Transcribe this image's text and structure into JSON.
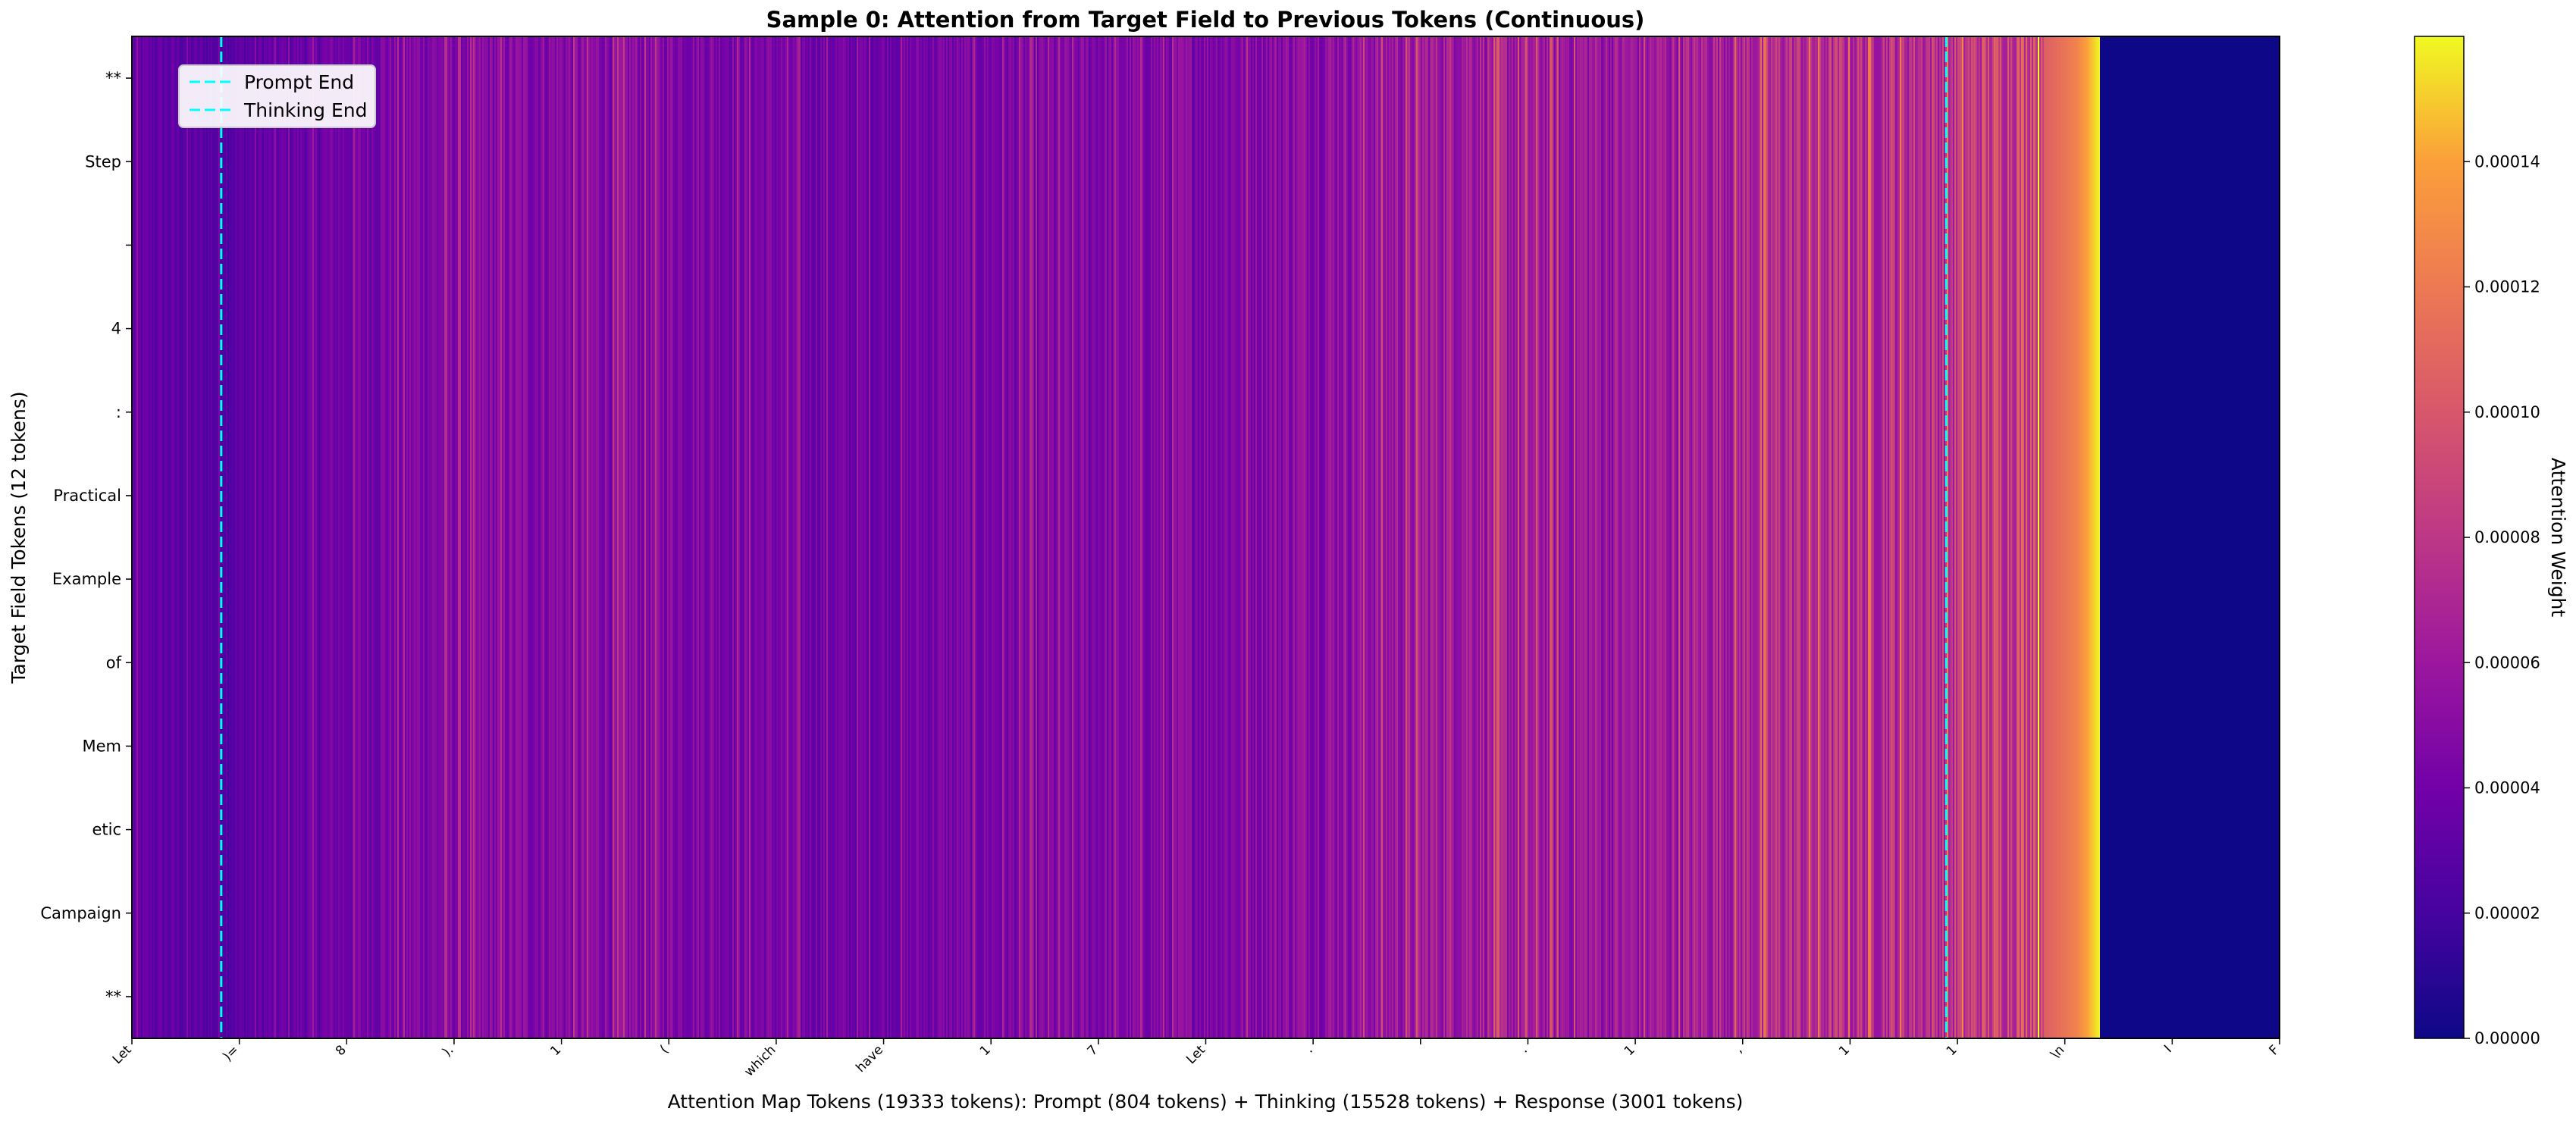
{
  "chart_data": {
    "type": "heatmap",
    "title": "Sample 0: Attention from Target Field to Previous Tokens (Continuous)",
    "xlabel": "Attention Map Tokens (19333 tokens): Prompt (804 tokens) + Thinking (15528 tokens) + Response (3001 tokens)",
    "ylabel": "Target Field Tokens (12 tokens)",
    "total_tokens": 19333,
    "segments": [
      {
        "name": "Prompt",
        "tokens": 804
      },
      {
        "name": "Thinking",
        "tokens": 15528
      },
      {
        "name": "Response",
        "tokens": 3001
      }
    ],
    "y_tokens": [
      "**",
      "Step",
      " ",
      "4",
      ":",
      "Practical",
      "Example",
      "of",
      "Mem",
      "etic",
      "Campaign",
      "**"
    ],
    "x_tick_labels": [
      "Let",
      ")=",
      "8",
      ").",
      "1",
      "(",
      "which",
      "have",
      "1",
      "7",
      "Let",
      ".",
      "",
      ".",
      "1",
      ",",
      "1",
      "1",
      "\\n",
      "I",
      "F"
    ],
    "vlines": [
      {
        "name": "Prompt End",
        "position": 804,
        "color": "#00ffff"
      },
      {
        "name": "Thinking End",
        "position": 16332,
        "color": "#00ffff"
      }
    ],
    "legend_position": "upper-left",
    "colormap": "plasma",
    "colorbar": {
      "label": "Attention Weight",
      "range": [
        0,
        0.00016
      ],
      "ticks": [
        "0.00000",
        "0.00002",
        "0.00004",
        "0.00006",
        "0.00008",
        "0.00010",
        "0.00012",
        "0.00014"
      ]
    },
    "column_profile_weight": [
      {
        "token": 0,
        "value": 3.3e-05
      },
      {
        "token": 400,
        "value": 3e-05
      },
      {
        "token": 804,
        "value": 2.8e-05
      },
      {
        "token": 2500,
        "value": 4.6e-05
      },
      {
        "token": 4500,
        "value": 5e-05
      },
      {
        "token": 6500,
        "value": 3.8e-05
      },
      {
        "token": 8000,
        "value": 4.4e-05
      },
      {
        "token": 10000,
        "value": 4.8e-05
      },
      {
        "token": 12000,
        "value": 6.4e-05
      },
      {
        "token": 13500,
        "value": 5.8e-05
      },
      {
        "token": 14800,
        "value": 7.2e-05
      },
      {
        "token": 16332,
        "value": 7.6e-05
      },
      {
        "token": 17000,
        "value": 9e-05
      },
      {
        "token": 17500,
        "value": 0.000125
      },
      {
        "token": 17710,
        "value": 0.00016
      },
      {
        "token": 17711,
        "value": 5e-07
      },
      {
        "token": 19333,
        "value": 5e-07
      }
    ]
  }
}
